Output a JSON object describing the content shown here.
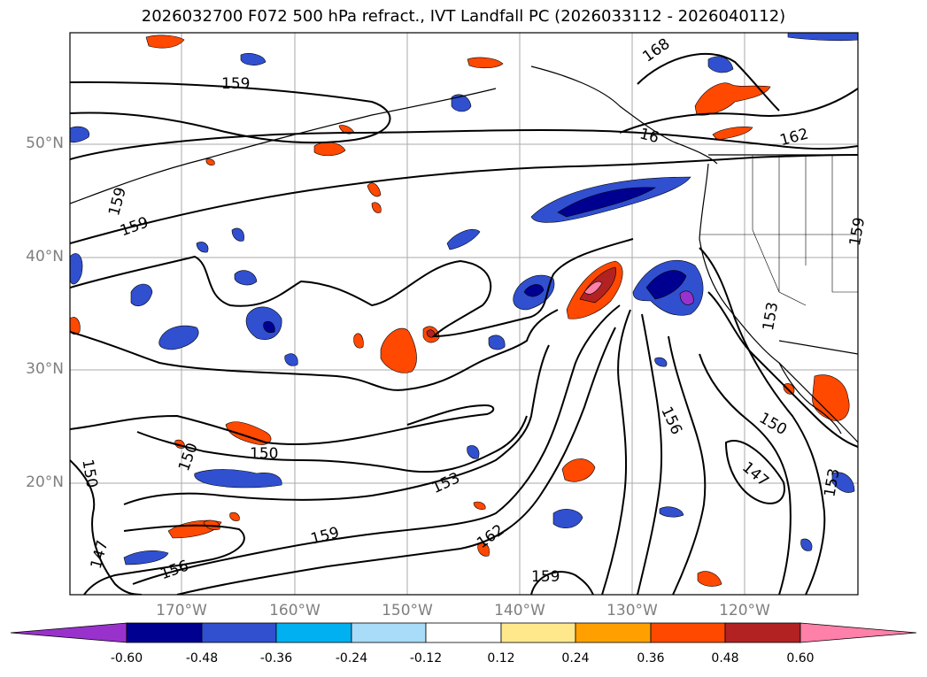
{
  "title": "2026032700 F072 500 hPa refract., IVT Landfall PC (2026033112 - 2026040112)",
  "map": {
    "lat_labels": [
      "50°N",
      "40°N",
      "30°N",
      "20°N"
    ],
    "lon_labels": [
      "170°W",
      "160°W",
      "150°W",
      "140°W",
      "130°W",
      "120°W"
    ],
    "contour_labels": [
      "159",
      "159",
      "159",
      "150",
      "150",
      "150",
      "153",
      "156",
      "147",
      "159",
      "162",
      "159",
      "156",
      "150",
      "147",
      "153",
      "153",
      "168",
      "162",
      "16",
      "159"
    ]
  },
  "colorbar": {
    "ticks": [
      "-0.60",
      "-0.48",
      "-0.36",
      "-0.24",
      "-0.12",
      "0.12",
      "0.24",
      "0.36",
      "0.48",
      "0.60"
    ],
    "colors": [
      "#9932cc",
      "#000090",
      "#3050d0",
      "#00b0f0",
      "#a8dcf8",
      "#ffffff",
      "#ffe88c",
      "#ffa000",
      "#ff4800",
      "#b22222",
      "#ff80a8"
    ]
  }
}
